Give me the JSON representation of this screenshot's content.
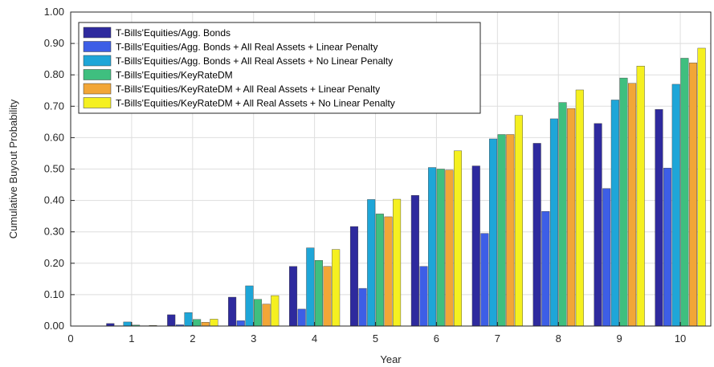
{
  "chart_data": {
    "type": "bar",
    "xlabel": "Year",
    "ylabel": "Cumulative Buyout Probability",
    "categories": [
      "1",
      "2",
      "3",
      "4",
      "5",
      "6",
      "7",
      "8",
      "9",
      "10"
    ],
    "x_ticks": [
      "0",
      "1",
      "2",
      "3",
      "4",
      "5",
      "6",
      "7",
      "8",
      "9",
      "10"
    ],
    "y_ticks": [
      "0.00",
      "0.10",
      "0.20",
      "0.30",
      "0.40",
      "0.50",
      "0.60",
      "0.70",
      "0.80",
      "0.90",
      "1.00"
    ],
    "ylim": [
      0,
      1
    ],
    "xlim": [
      0,
      10.5
    ],
    "grid": true,
    "legend_position": "top-left",
    "series": [
      {
        "name": "T-Bills'Equities/Agg. Bonds",
        "color": "#2e2a9e",
        "values": [
          0.008,
          0.036,
          0.092,
          0.19,
          0.317,
          0.416,
          0.51,
          0.582,
          0.645,
          0.69
        ]
      },
      {
        "name": "T-Bills'Equities/Agg. Bonds + All Real Assets + Linear Penalty",
        "color": "#3d5ee6",
        "values": [
          0.001,
          0.004,
          0.017,
          0.054,
          0.12,
          0.19,
          0.295,
          0.365,
          0.438,
          0.503
        ]
      },
      {
        "name": "T-Bills'Equities/Agg. Bonds + All Real Assets + No Linear Penalty",
        "color": "#1ea6d8",
        "values": [
          0.013,
          0.043,
          0.128,
          0.249,
          0.403,
          0.505,
          0.596,
          0.66,
          0.72,
          0.77
        ]
      },
      {
        "name": "T-Bills'Equities/KeyRateDM",
        "color": "#3fbf7f",
        "values": [
          0.003,
          0.021,
          0.085,
          0.209,
          0.357,
          0.5,
          0.61,
          0.712,
          0.79,
          0.853
        ]
      },
      {
        "name": "T-Bills'Equities/KeyRateDM + All Real Assets + Linear Penalty",
        "color": "#f2a637",
        "values": [
          0.001,
          0.012,
          0.07,
          0.19,
          0.348,
          0.497,
          0.61,
          0.693,
          0.773,
          0.838
        ]
      },
      {
        "name": "T-Bills'Equities/KeyRateDM + All Real Assets + No Linear Penalty",
        "color": "#f5f020",
        "values": [
          0.002,
          0.022,
          0.097,
          0.244,
          0.404,
          0.558,
          0.671,
          0.752,
          0.828,
          0.885
        ]
      }
    ]
  }
}
